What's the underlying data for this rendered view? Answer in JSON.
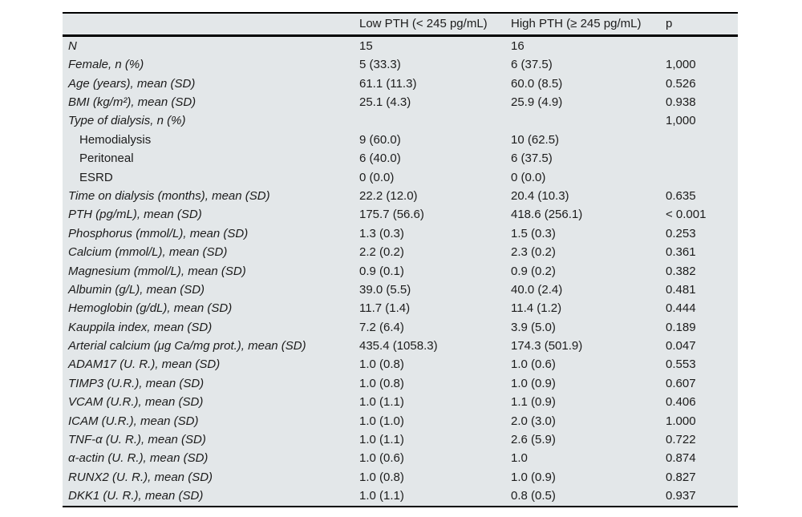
{
  "colors": {
    "table_background": "#e3e7e9",
    "page_background": "#ffffff",
    "rule_color": "#000000",
    "text_color": "#1c1c1c"
  },
  "table": {
    "columns": [
      "",
      "Low PTH (< 245 pg/mL)",
      "High PTH (≥ 245 pg/mL)",
      "p"
    ],
    "rows": [
      {
        "label": "N",
        "low": "15",
        "high": "16",
        "p": "",
        "indent": false
      },
      {
        "label": "Female, n (%)",
        "low": "5 (33.3)",
        "high": "6 (37.5)",
        "p": "1,000",
        "indent": false
      },
      {
        "label": "Age (years), mean (SD)",
        "low": "61.1 (11.3)",
        "high": "60.0 (8.5)",
        "p": "0.526",
        "indent": false
      },
      {
        "label": "BMI (kg/m²), mean (SD)",
        "low": "25.1 (4.3)",
        "high": "25.9 (4.9)",
        "p": "0.938",
        "indent": false
      },
      {
        "label": "Type of dialysis, n (%)",
        "low": "",
        "high": "",
        "p": "1,000",
        "indent": false
      },
      {
        "label": "Hemodialysis",
        "low": "9 (60.0)",
        "high": "10 (62.5)",
        "p": "",
        "indent": true
      },
      {
        "label": "Peritoneal",
        "low": "6 (40.0)",
        "high": "6 (37.5)",
        "p": "",
        "indent": true
      },
      {
        "label": "ESRD",
        "low": "0 (0.0)",
        "high": "0 (0.0)",
        "p": "",
        "indent": true
      },
      {
        "label": "Time on dialysis (months), mean (SD)",
        "low": "22.2 (12.0)",
        "high": "20.4 (10.3)",
        "p": "0.635",
        "indent": false
      },
      {
        "label": "PTH (pg/mL), mean (SD)",
        "low": "175.7 (56.6)",
        "high": "418.6 (256.1)",
        "p": "< 0.001",
        "indent": false
      },
      {
        "label": "Phosphorus (mmol/L), mean (SD)",
        "low": "1.3 (0.3)",
        "high": "1.5 (0.3)",
        "p": "0.253",
        "indent": false
      },
      {
        "label": "Calcium (mmol/L), mean (SD)",
        "low": "2.2 (0.2)",
        "high": "2.3 (0.2)",
        "p": "0.361",
        "indent": false
      },
      {
        "label": "Magnesium (mmol/L), mean (SD)",
        "low": "0.9 (0.1)",
        "high": "0.9 (0.2)",
        "p": "0.382",
        "indent": false
      },
      {
        "label": "Albumin (g/L), mean (SD)",
        "low": "39.0 (5.5)",
        "high": "40.0 (2.4)",
        "p": "0.481",
        "indent": false
      },
      {
        "label": "Hemoglobin (g/dL), mean (SD)",
        "low": "11.7 (1.4)",
        "high": "11.4 (1.2)",
        "p": "0.444",
        "indent": false
      },
      {
        "label": "Kauppila index, mean (SD)",
        "low": "7.2 (6.4)",
        "high": "3.9 (5.0)",
        "p": "0.189",
        "indent": false
      },
      {
        "label": "Arterial calcium (μg Ca/mg prot.), mean (SD)",
        "low": "435.4 (1058.3)",
        "high": "174.3 (501.9)",
        "p": "0.047",
        "indent": false
      },
      {
        "label": "ADAM17 (U. R.), mean (SD)",
        "low": "1.0 (0.8)",
        "high": "1.0 (0.6)",
        "p": "0.553",
        "indent": false
      },
      {
        "label": "TIMP3 (U.R.), mean (SD)",
        "low": "1.0 (0.8)",
        "high": "1.0 (0.9)",
        "p": "0.607",
        "indent": false
      },
      {
        "label": "VCAM (U.R.), mean (SD)",
        "low": "1.0 (1.1)",
        "high": "1.1 (0.9)",
        "p": "0.406",
        "indent": false
      },
      {
        "label": "ICAM (U.R.), mean (SD)",
        "low": "1.0 (1.0)",
        "high": "2.0 (3.0)",
        "p": "1.000",
        "indent": false
      },
      {
        "label": "TNF-α (U. R.), mean (SD)",
        "low": "1.0 (1.1)",
        "high": "2.6 (5.9)",
        "p": "0.722",
        "indent": false
      },
      {
        "label": "α-actin (U. R.), mean (SD)",
        "low": "1.0 (0.6)",
        "high": "1.0",
        "p": "0.874",
        "indent": false
      },
      {
        "label": "RUNX2 (U. R.), mean (SD)",
        "low": "1.0 (0.8)",
        "high": "1.0 (0.9)",
        "p": "0.827",
        "indent": false
      },
      {
        "label": "DKK1 (U. R.), mean (SD)",
        "low": "1.0 (1.1)",
        "high": "0.8 (0.5)",
        "p": "0.937",
        "indent": false
      }
    ]
  }
}
